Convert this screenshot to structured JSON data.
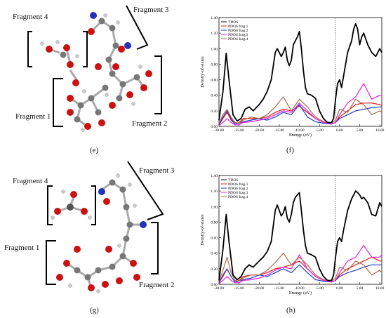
{
  "top": {
    "fragments": {
      "f4": "Fragment 4",
      "f3": "Fragment 3",
      "f1": "Fragment 1",
      "f2": "Fragment 2"
    },
    "letter_mol": "(e)",
    "letter_chart": "(f)"
  },
  "bottom": {
    "fragments": {
      "f4": "Fragment 4",
      "f3": "Fragment 3",
      "f1": "Fragment 1",
      "f2": "Fragment 2"
    },
    "letter_mol": "(g)",
    "letter_chart": "(h)"
  },
  "chart_data": [
    {
      "type": "line",
      "xlabel": "Energy (eV)",
      "ylabel": "Density-of-states",
      "xlim": [
        -30,
        10.5
      ],
      "ylim": [
        0,
        1.4
      ],
      "xticks": [
        -30,
        -25,
        -20,
        -15,
        -10,
        -5,
        0,
        5,
        10
      ],
      "xtick_labels": [
        "-30.00",
        "-25.00",
        "-20.00",
        "-15.00",
        "-10.00",
        "-5.00",
        "0.00",
        "5.00",
        "10.00"
      ],
      "yticks": [
        0,
        0.2,
        0.4,
        0.6,
        0.8,
        1.0,
        1.2,
        1.4
      ],
      "ytick_labels": [
        "0.00",
        "0.20",
        "0.40",
        "0.60",
        "0.80",
        "1.00",
        "1.20",
        "1.40"
      ],
      "vline_x": -1,
      "legend_position": "top-left",
      "series": [
        {
          "name": "TDOS",
          "color": "#000000",
          "x": [
            -30,
            -29,
            -28.2,
            -27.5,
            -26.5,
            -25.5,
            -24.5,
            -23.5,
            -22.5,
            -21.5,
            -20,
            -19,
            -18,
            -17,
            -16,
            -15.5,
            -15,
            -14.5,
            -14,
            -13.5,
            -13,
            -12.5,
            -12,
            -11.5,
            -11,
            -10.5,
            -10,
            -9.5,
            -9,
            -8.5,
            -8,
            -7,
            -6,
            -5,
            -4,
            -3,
            -2,
            -1.5,
            -1,
            -0.5,
            0,
            0.5,
            1,
            2,
            3,
            3.5,
            4,
            4.5,
            5,
            5.5,
            6,
            7,
            8,
            9,
            10,
            10.5
          ],
          "y": [
            0.08,
            0.45,
            0.94,
            0.6,
            0.15,
            0.07,
            0.1,
            0.22,
            0.25,
            0.2,
            0.28,
            0.35,
            0.45,
            0.6,
            0.95,
            1.0,
            0.95,
            0.9,
            0.95,
            1.02,
            0.85,
            0.78,
            0.85,
            1.05,
            1.1,
            1.15,
            1.22,
            1.0,
            0.72,
            0.5,
            0.42,
            0.4,
            0.36,
            0.2,
            0.1,
            0.05,
            0.05,
            0.1,
            0.35,
            0.55,
            0.6,
            0.5,
            0.65,
            0.95,
            1.1,
            1.25,
            1.32,
            1.25,
            1.05,
            1.15,
            1.2,
            1.05,
            0.95,
            0.9,
            1.0,
            0.95
          ]
        },
        {
          "name": "PDOS frag.1",
          "color": "#e31a1c",
          "x": [
            -30,
            -29,
            -28,
            -27,
            -26,
            -25,
            -24,
            -22,
            -20,
            -18,
            -16,
            -14,
            -12,
            -10,
            -8,
            -6,
            -4,
            -2,
            -1,
            0,
            2,
            4,
            6,
            8,
            10,
            10.5
          ],
          "y": [
            0.02,
            0.1,
            0.18,
            0.08,
            0.03,
            0.05,
            0.1,
            0.1,
            0.1,
            0.12,
            0.18,
            0.22,
            0.2,
            0.26,
            0.18,
            0.1,
            0.05,
            0.03,
            0.05,
            0.12,
            0.2,
            0.28,
            0.3,
            0.3,
            0.28,
            0.27
          ]
        },
        {
          "name": "PDOS frag.2",
          "color": "#1f3fbf",
          "x": [
            -30,
            -29,
            -28,
            -27,
            -26,
            -25,
            -24,
            -22,
            -20,
            -18,
            -16,
            -14,
            -12,
            -10,
            -8,
            -6,
            -4,
            -2,
            -1,
            0,
            2,
            4,
            6,
            8,
            10,
            10.5
          ],
          "y": [
            0.02,
            0.12,
            0.2,
            0.1,
            0.03,
            0.04,
            0.06,
            0.08,
            0.1,
            0.08,
            0.12,
            0.18,
            0.15,
            0.28,
            0.12,
            0.06,
            0.04,
            0.03,
            0.05,
            0.1,
            0.15,
            0.2,
            0.22,
            0.24,
            0.25,
            0.25
          ]
        },
        {
          "name": "PDOS frag.3",
          "color": "#e020e0",
          "x": [
            -30,
            -29,
            -28,
            -27,
            -26,
            -25,
            -24,
            -22,
            -20,
            -18,
            -16,
            -14,
            -12,
            -10,
            -8,
            -6,
            -4,
            -2,
            -1,
            0,
            2,
            4,
            6,
            8,
            10,
            10.5
          ],
          "y": [
            0.01,
            0.05,
            0.1,
            0.05,
            0.02,
            0.02,
            0.05,
            0.06,
            0.08,
            0.1,
            0.15,
            0.2,
            0.18,
            0.3,
            0.2,
            0.1,
            0.05,
            0.03,
            0.05,
            0.15,
            0.3,
            0.38,
            0.55,
            0.35,
            0.4,
            0.4
          ]
        },
        {
          "name": "PDOS frag.4",
          "color": "#b06a4a",
          "x": [
            -30,
            -29,
            -28,
            -27,
            -26,
            -25,
            -24,
            -22,
            -20,
            -18,
            -16,
            -14,
            -12,
            -10,
            -8,
            -6,
            -4,
            -2,
            -1,
            0,
            2,
            4,
            6,
            8,
            10,
            10.5
          ],
          "y": [
            0.04,
            0.15,
            0.22,
            0.12,
            0.05,
            0.04,
            0.08,
            0.12,
            0.1,
            0.15,
            0.25,
            0.38,
            0.2,
            0.35,
            0.25,
            0.12,
            0.06,
            0.04,
            0.08,
            0.22,
            0.18,
            0.35,
            0.28,
            0.15,
            0.2,
            0.18
          ]
        }
      ]
    },
    {
      "type": "line",
      "xlabel": "Energy (eV)",
      "ylabel": "Density-of-states",
      "xlim": [
        -30,
        10.5
      ],
      "ylim": [
        0,
        1.4
      ],
      "xticks": [
        -30,
        -25,
        -20,
        -15,
        -10,
        -5,
        0,
        5,
        10
      ],
      "xtick_labels": [
        "-30.00",
        "-25.00",
        "-20.00",
        "-15.00",
        "-10.00",
        "-5.00",
        "0.00",
        "5.00",
        "10.00"
      ],
      "yticks": [
        0,
        0.2,
        0.4,
        0.6,
        0.8,
        1.0,
        1.2,
        1.4
      ],
      "ytick_labels": [
        "0.00",
        "0.20",
        "0.40",
        "0.60",
        "0.80",
        "1.00",
        "1.20",
        "1.40"
      ],
      "vline_x": -1,
      "legend_position": "top-left",
      "series": [
        {
          "name": "TDOS",
          "color": "#000000",
          "x": [
            -30,
            -29,
            -28.2,
            -27.5,
            -26.5,
            -25.5,
            -24.5,
            -23.5,
            -22.5,
            -21.5,
            -20,
            -19,
            -18,
            -17,
            -16,
            -15.5,
            -15,
            -14.5,
            -14,
            -13.5,
            -13,
            -12.5,
            -12,
            -11.5,
            -11,
            -10.5,
            -10,
            -9.5,
            -9,
            -8.5,
            -8,
            -7,
            -6,
            -5,
            -4,
            -3,
            -2,
            -1.5,
            -1,
            -0.5,
            0,
            0.5,
            1,
            2,
            3,
            3.5,
            4,
            4.5,
            5,
            5.5,
            6,
            7,
            8,
            9,
            10,
            10.5
          ],
          "y": [
            0.05,
            0.45,
            0.9,
            0.55,
            0.12,
            0.06,
            0.1,
            0.2,
            0.25,
            0.22,
            0.3,
            0.35,
            0.42,
            0.55,
            0.95,
            1.02,
            0.95,
            0.88,
            0.92,
            1.0,
            0.85,
            0.8,
            0.9,
            1.05,
            1.12,
            1.15,
            1.18,
            0.95,
            0.7,
            0.5,
            0.4,
            0.38,
            0.35,
            0.2,
            0.1,
            0.05,
            0.05,
            0.12,
            0.35,
            0.55,
            0.6,
            0.55,
            0.7,
            0.95,
            1.1,
            1.15,
            1.2,
            1.18,
            1.15,
            1.1,
            1.12,
            1.05,
            0.9,
            0.88,
            1.05,
            1.0
          ]
        },
        {
          "name": "PDOS frag.1",
          "color": "#e31a1c",
          "x": [
            -30,
            -29,
            -28,
            -27,
            -26,
            -25,
            -24,
            -22,
            -20,
            -18,
            -16,
            -14,
            -12,
            -10,
            -8,
            -6,
            -4,
            -2,
            -1,
            0,
            2,
            4,
            6,
            8,
            10,
            10.5
          ],
          "y": [
            0.02,
            0.1,
            0.2,
            0.1,
            0.03,
            0.05,
            0.1,
            0.12,
            0.12,
            0.15,
            0.2,
            0.22,
            0.25,
            0.3,
            0.2,
            0.1,
            0.05,
            0.03,
            0.05,
            0.12,
            0.2,
            0.25,
            0.3,
            0.35,
            0.3,
            0.3
          ]
        },
        {
          "name": "PDOS frag.2",
          "color": "#1f3fbf",
          "x": [
            -30,
            -29,
            -28,
            -27,
            -26,
            -25,
            -24,
            -22,
            -20,
            -18,
            -16,
            -14,
            -12,
            -10,
            -8,
            -6,
            -4,
            -2,
            -1,
            0,
            2,
            4,
            6,
            8,
            10,
            10.5
          ],
          "y": [
            0.02,
            0.12,
            0.2,
            0.1,
            0.03,
            0.04,
            0.06,
            0.08,
            0.12,
            0.1,
            0.15,
            0.2,
            0.15,
            0.25,
            0.15,
            0.06,
            0.04,
            0.03,
            0.05,
            0.1,
            0.15,
            0.18,
            0.22,
            0.25,
            0.25,
            0.25
          ]
        },
        {
          "name": "PDOS frag.3",
          "color": "#e020e0",
          "x": [
            -30,
            -29,
            -28,
            -27,
            -26,
            -25,
            -24,
            -22,
            -20,
            -18,
            -16,
            -14,
            -12,
            -10,
            -8,
            -6,
            -4,
            -2,
            -1,
            0,
            2,
            4,
            6,
            8,
            10,
            10.5
          ],
          "y": [
            0.01,
            0.05,
            0.1,
            0.05,
            0.02,
            0.02,
            0.05,
            0.06,
            0.08,
            0.12,
            0.18,
            0.22,
            0.2,
            0.38,
            0.2,
            0.1,
            0.05,
            0.03,
            0.05,
            0.15,
            0.3,
            0.35,
            0.5,
            0.35,
            0.35,
            0.38
          ]
        },
        {
          "name": "PDOS frag.4",
          "color": "#b06a4a",
          "x": [
            -30,
            -29,
            -28,
            -27,
            -26,
            -25,
            -24,
            -22,
            -20,
            -18,
            -16,
            -14,
            -12,
            -10,
            -8,
            -6,
            -4,
            -2,
            -1,
            0,
            2,
            4,
            6,
            8,
            10,
            10.5
          ],
          "y": [
            0.04,
            0.18,
            0.35,
            0.15,
            0.05,
            0.04,
            0.08,
            0.12,
            0.12,
            0.18,
            0.28,
            0.4,
            0.25,
            0.35,
            0.25,
            0.12,
            0.06,
            0.04,
            0.08,
            0.22,
            0.18,
            0.3,
            0.25,
            0.12,
            0.18,
            0.15
          ]
        }
      ]
    }
  ]
}
